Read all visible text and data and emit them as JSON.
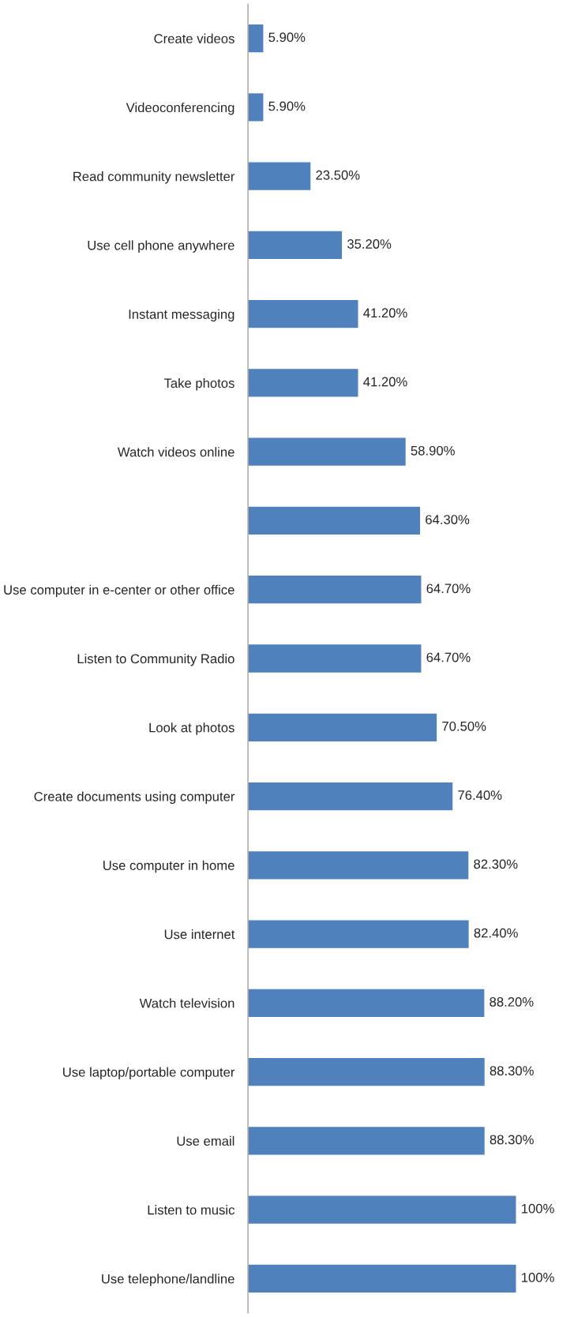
{
  "chart_data": {
    "type": "bar",
    "orientation": "horizontal",
    "color": "#4f81bd",
    "categories": [
      "Create videos",
      "Videoconferencing",
      "Read community newsletter",
      "Use cell phone anywhere",
      "Instant messaging",
      "Take photos",
      "Watch videos online",
      null,
      "Use computer in e-center or other office",
      "Listen to Community Radio",
      "Look at photos",
      "Create documents using computer",
      "Use computer in home",
      "Use internet",
      "Watch television",
      "Use laptop/portable computer",
      "Use email",
      "Listen to music",
      "Use telephone/landline"
    ],
    "values": [
      5.9,
      5.9,
      23.5,
      35.2,
      41.2,
      41.2,
      58.9,
      64.3,
      64.7,
      64.7,
      70.5,
      76.4,
      82.3,
      82.4,
      88.2,
      88.3,
      88.3,
      100,
      100
    ],
    "value_labels": [
      "5.90%",
      "5.90%",
      "23.50%",
      "35.20%",
      "41.20%",
      "41.20%",
      "58.90%",
      "64.30%",
      "64.70%",
      "64.70%",
      "70.50%",
      "76.40%",
      "82.30%",
      "82.40%",
      "88.20%",
      "88.30%",
      "88.30%",
      "100%",
      "100%"
    ],
    "grid": false,
    "legend": false
  }
}
